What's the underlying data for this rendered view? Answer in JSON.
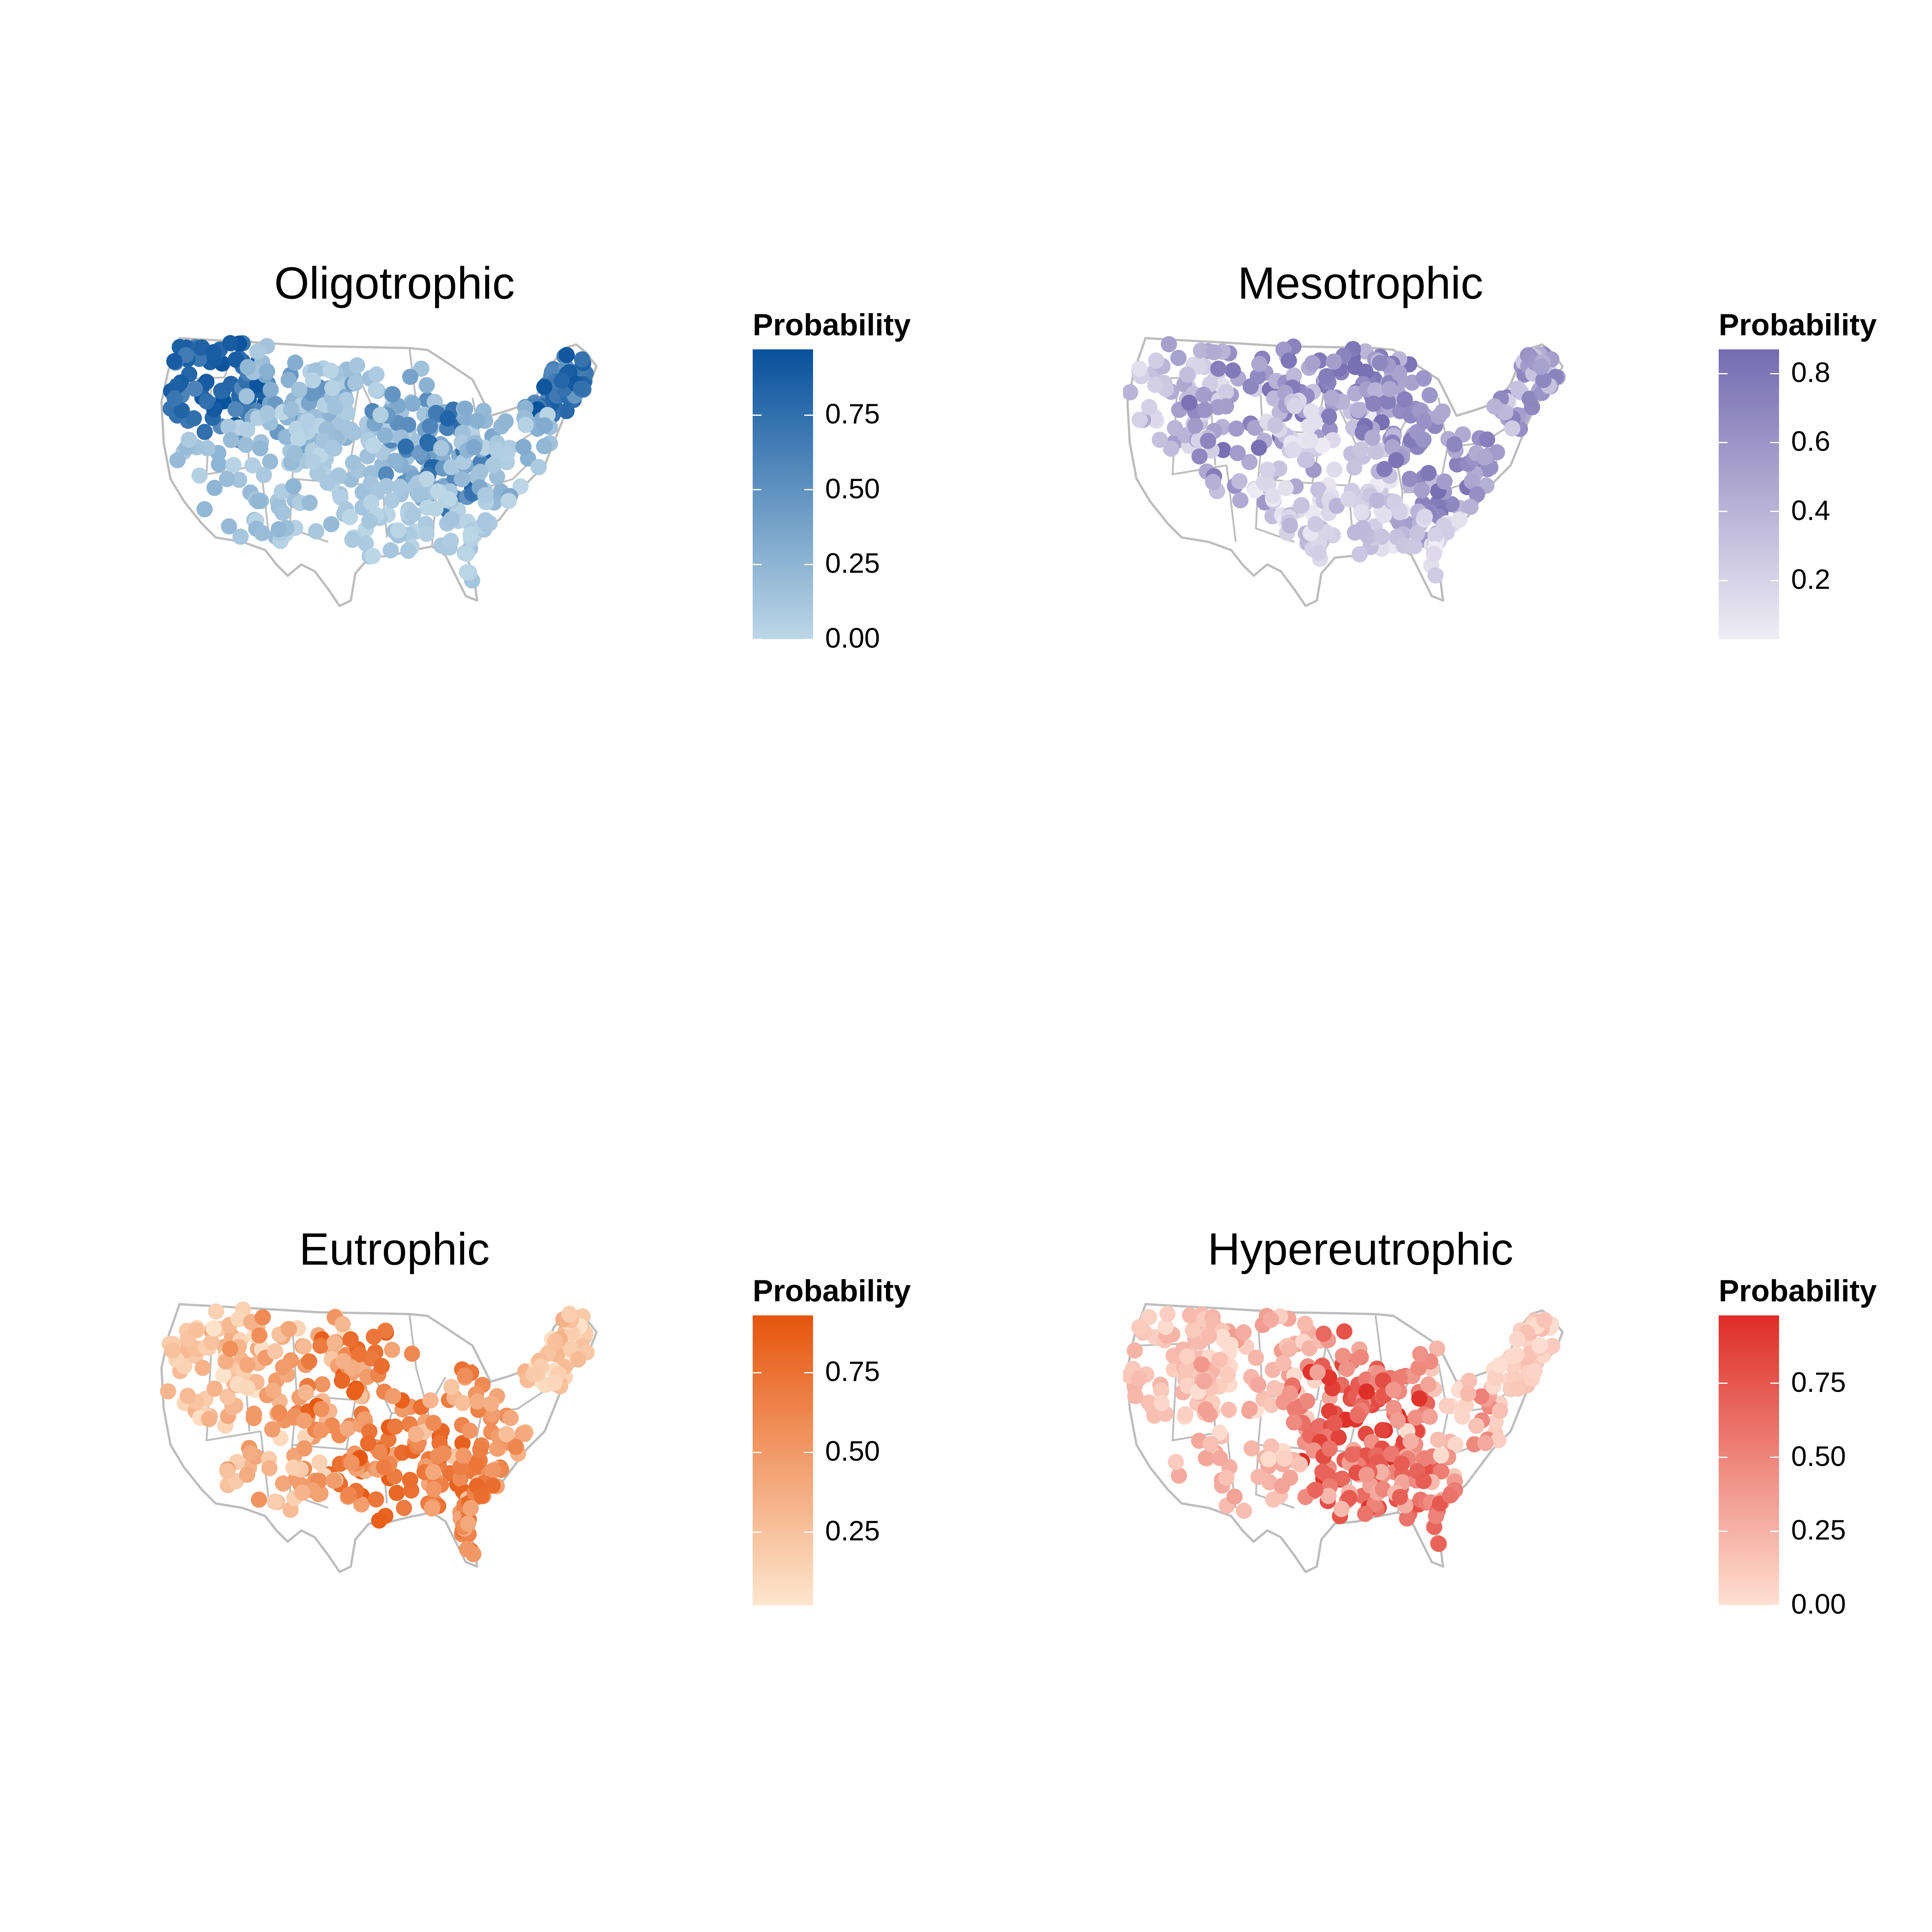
{
  "figure": {
    "panels": [
      {
        "id": "oligotrophic",
        "title": "Oligotrophic",
        "legend_title": "Probability",
        "color_low": "#bdd7e7",
        "color_high": "#08519c",
        "range": [
          0.0,
          0.97
        ],
        "ticks": [
          "0.00",
          "0.25",
          "0.50",
          "0.75"
        ],
        "tick_values": [
          0.0,
          0.25,
          0.5,
          0.75
        ],
        "hotspots": [
          "northwest",
          "northeast",
          "great-lakes-east"
        ]
      },
      {
        "id": "mesotrophic",
        "title": "Mesotrophic",
        "legend_title": "Probability",
        "color_low": "#efedf5",
        "color_high": "#756bb1",
        "range": [
          0.03,
          0.87
        ],
        "ticks": [
          "0.2",
          "0.4",
          "0.6",
          "0.8"
        ],
        "tick_values": [
          0.2,
          0.4,
          0.6,
          0.8
        ],
        "hotspots": [
          "north-central",
          "northwest",
          "northeast",
          "southeast-inland"
        ]
      },
      {
        "id": "eutrophic",
        "title": "Eutrophic",
        "legend_title": "Probability",
        "color_low": "#fee6ce",
        "color_high": "#e6550d",
        "range": [
          0.02,
          0.93
        ],
        "ticks": [
          "0.25",
          "0.50",
          "0.75"
        ],
        "tick_values": [
          0.25,
          0.5,
          0.75
        ],
        "hotspots": [
          "plains",
          "south-central",
          "southeast"
        ]
      },
      {
        "id": "hypereutrophic",
        "title": "Hypereutrophic",
        "legend_title": "Probability",
        "color_low": "#fee0d2",
        "color_high": "#de2d26",
        "range": [
          0.0,
          0.98
        ],
        "ticks": [
          "0.00",
          "0.25",
          "0.50",
          "0.75"
        ],
        "tick_values": [
          0.0,
          0.25,
          0.5,
          0.75
        ],
        "hotspots": [
          "midwest-corn-belt",
          "mississippi-valley",
          "florida"
        ]
      }
    ],
    "map_outline_color": "#bdbdbd"
  }
}
